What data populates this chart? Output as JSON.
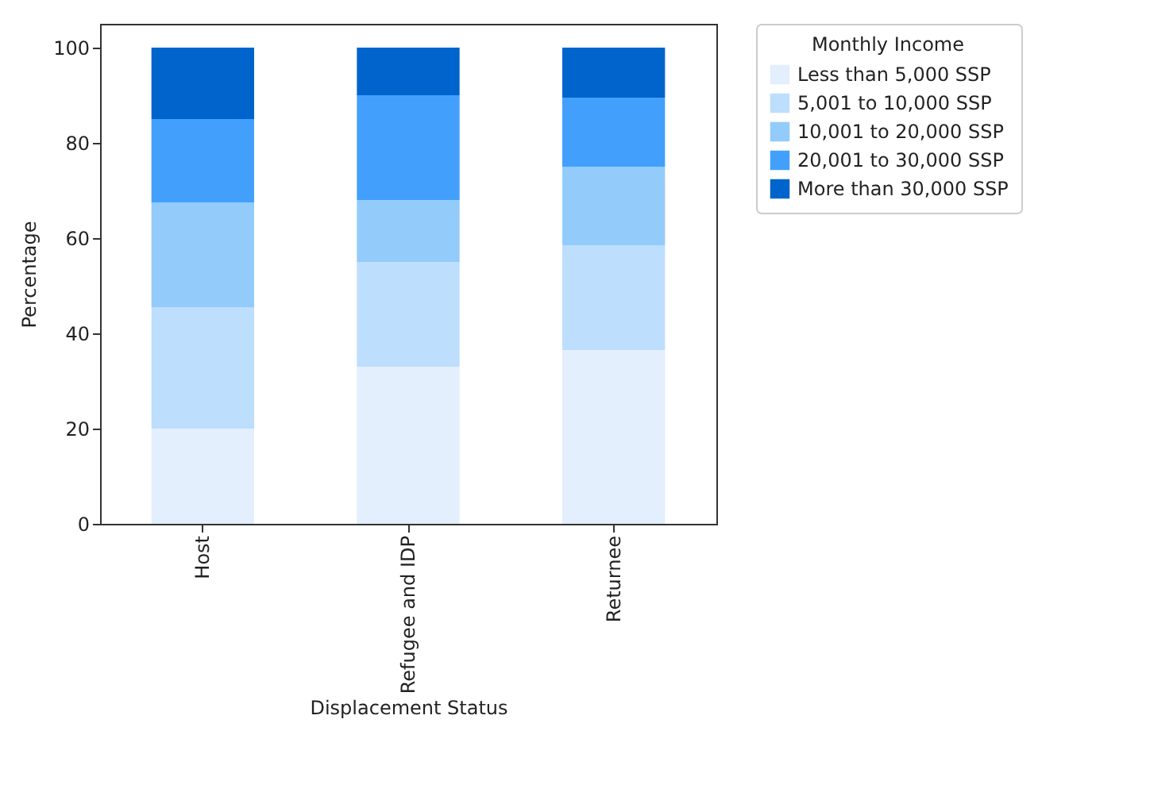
{
  "chart_data": {
    "type": "bar",
    "stacked": true,
    "xlabel": "Displacement Status",
    "ylabel": "Percentage",
    "legend_title": "Monthly Income",
    "legend": "top right",
    "categories": [
      "Host",
      "Refugee and IDP",
      "Returnee"
    ],
    "series": [
      {
        "name": "Less than 5,000 SSP",
        "color": "#e3effd",
        "values": [
          20,
          33,
          36.5
        ]
      },
      {
        "name": "5,001 to 10,000 SSP",
        "color": "#bddefd",
        "values": [
          25.5,
          22,
          22
        ]
      },
      {
        "name": "10,001 to 20,000 SSP",
        "color": "#93cbfb",
        "values": [
          22,
          13,
          16.5
        ]
      },
      {
        "name": "20,001 to 30,000 SSP",
        "color": "#42a0fc",
        "values": [
          17.5,
          22,
          14.5
        ]
      },
      {
        "name": "More than 30,000 SSP",
        "color": "#0064cd",
        "values": [
          15,
          10,
          10.5
        ]
      }
    ],
    "ylim": [
      0,
      105
    ],
    "yticks": [
      0,
      20,
      40,
      60,
      80,
      100
    ],
    "grid": false
  }
}
